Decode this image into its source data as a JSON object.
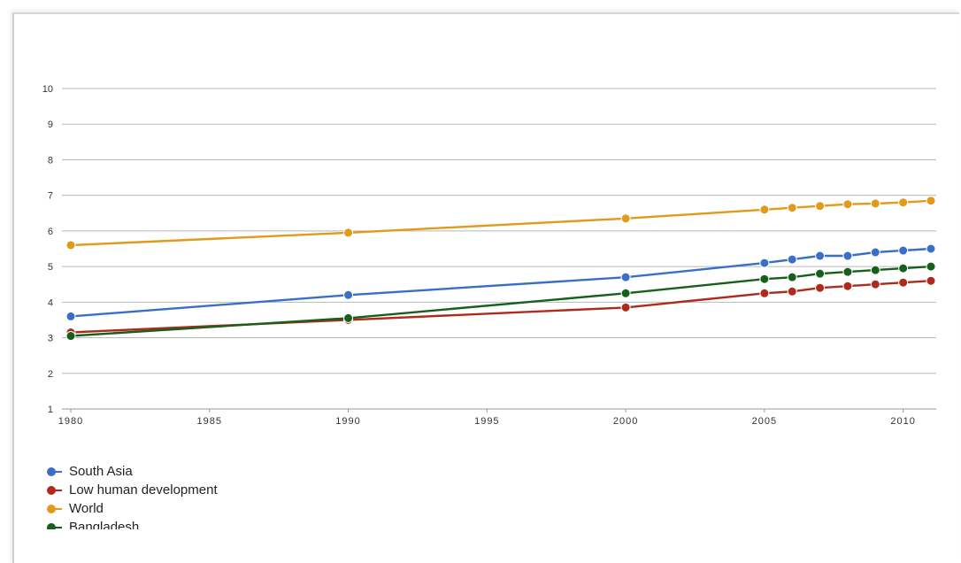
{
  "chart_data": {
    "type": "line",
    "title": "",
    "xlabel": "",
    "ylabel": "",
    "x": [
      1980,
      1990,
      2000,
      2005,
      2006,
      2007,
      2008,
      2009,
      2010,
      2011
    ],
    "x_ticks": [
      1980,
      1985,
      1990,
      1995,
      2000,
      2005,
      2010
    ],
    "xlim": [
      1980,
      2011
    ],
    "ylim": [
      1,
      10
    ],
    "y_ticks": [
      1,
      2,
      3,
      4,
      5,
      6,
      7,
      8,
      9,
      10
    ],
    "y_tick_labels": [
      "1",
      "2",
      "3",
      "4",
      "5",
      "6",
      "7",
      "8",
      "9",
      "10"
    ],
    "grid": true,
    "legend_position": "bottom-left",
    "series": [
      {
        "name": "South Asia",
        "color": "#3a6fc8",
        "values": [
          3.6,
          4.2,
          4.7,
          5.1,
          5.2,
          5.3,
          5.3,
          5.4,
          5.45,
          5.5
        ]
      },
      {
        "name": "Low human development",
        "color": "#b02a1c",
        "values": [
          3.15,
          3.5,
          3.85,
          4.25,
          4.3,
          4.4,
          4.45,
          4.5,
          4.55,
          4.6
        ]
      },
      {
        "name": "World",
        "color": "#e19a1a",
        "values": [
          5.6,
          5.95,
          6.35,
          6.6,
          6.65,
          6.7,
          6.75,
          6.77,
          6.8,
          6.85
        ]
      },
      {
        "name": "Bangladesh",
        "color": "#16601c",
        "values": [
          3.05,
          3.55,
          4.25,
          4.65,
          4.7,
          4.8,
          4.85,
          4.9,
          4.95,
          5.0
        ]
      }
    ]
  }
}
